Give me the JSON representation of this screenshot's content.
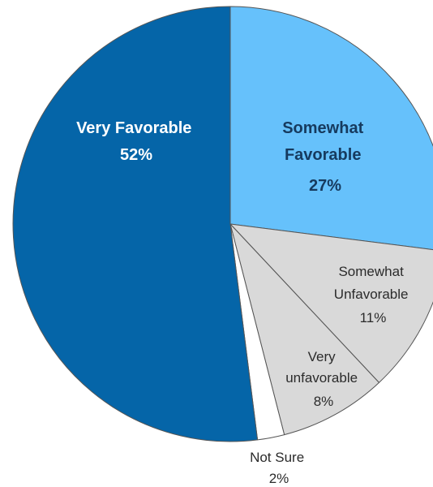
{
  "chart_data": {
    "type": "pie",
    "slices": [
      {
        "key": "somewhat_favorable",
        "lines": [
          "Somewhat",
          "Favorable"
        ],
        "value_label": "27%",
        "value": 27,
        "color": "#66c1fb",
        "text_color": "#163a5e"
      },
      {
        "key": "somewhat_unfavorable",
        "lines": [
          "Somewhat",
          "Unfavorable"
        ],
        "value_label": "11%",
        "value": 11,
        "color": "#d9d9d9",
        "text_color": "#2b2b2b"
      },
      {
        "key": "very_unfavorable",
        "lines": [
          "Very",
          "unfavorable"
        ],
        "value_label": "8%",
        "value": 8,
        "color": "#d9d9d9",
        "text_color": "#2b2b2b"
      },
      {
        "key": "not_sure",
        "lines": [
          "Not Sure"
        ],
        "value_label": "2%",
        "value": 2,
        "color": "#ffffff",
        "text_color": "#2b2b2b"
      },
      {
        "key": "very_favorable",
        "lines": [
          "Very Favorable"
        ],
        "value_label": "52%",
        "value": 52,
        "color": "#0565a8",
        "text_color": "#ffffff"
      }
    ],
    "start_angle_deg": 0,
    "direction": "clockwise"
  }
}
